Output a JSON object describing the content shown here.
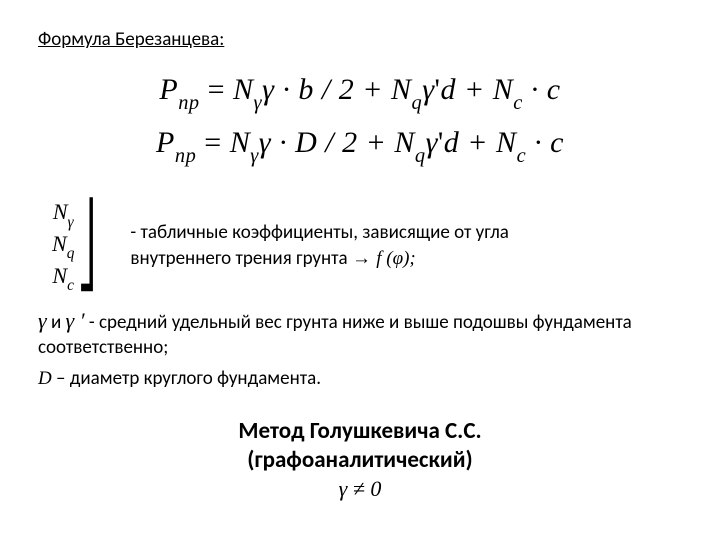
{
  "title": "Формула Березанцева:",
  "equations": {
    "lhs": "P",
    "lhs_sub": "пр",
    "eq1_parts": {
      "n1": "N",
      "n1_sub": "γ",
      "g1": "γ",
      "op1": " · ",
      "b": "b",
      "half": " / 2 + ",
      "n2": "N",
      "n2_sub": "q",
      "gp": "γ",
      "prime": "'",
      "d": "d",
      "plus2": " + ",
      "n3": "N",
      "n3_sub": "c",
      "op3": " · ",
      "c": "c"
    },
    "eq2_parts": {
      "n1": "N",
      "n1_sub": "γ",
      "g1": "γ",
      "op1": " · ",
      "D": "D",
      "half": " / 2 + ",
      "n2": "N",
      "n2_sub": "q",
      "gp": "γ",
      "prime": "'",
      "d": "d",
      "plus2": " + ",
      "n3": "N",
      "n3_sub": "c",
      "op3": " · ",
      "c": "c"
    }
  },
  "coefs": {
    "n1": "N",
    "n1_sub": "γ",
    "n2": "N",
    "n2_sub": "q",
    "n3": "N",
    "n3_sub": "c"
  },
  "coef_text_1": "- табличные коэффициенты, зависящие от угла",
  "coef_text_2a": "внутреннего трения грунта ",
  "coef_text_2_arrow": "→ ",
  "coef_text_2_f": "f (φ);",
  "gamma_line_prefix": "γ",
  "gamma_line_and": " и ",
  "gamma_line_prime": "γ ′",
  "gamma_line_rest": " - средний удельный вес грунта ниже и выше подошвы фундамента соответственно;",
  "d_line_var": "D",
  "d_line_rest": " – диаметр круглого фундамента.",
  "heading2_l1": "Метод Голушкевича С.С.",
  "heading2_l2": "(графоаналитический)",
  "heading2_l3": "γ ≠ 0",
  "colors": {
    "bg": "#ffffff",
    "text": "#000000"
  }
}
